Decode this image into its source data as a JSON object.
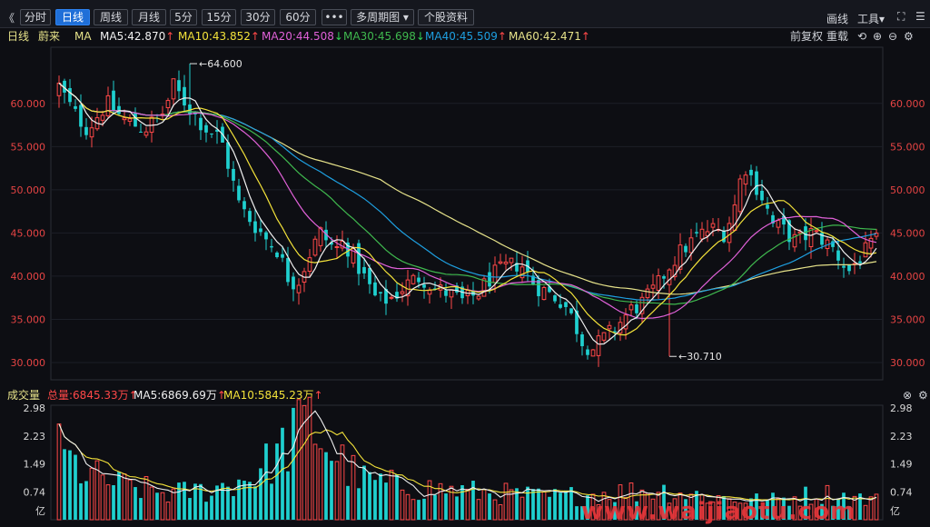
{
  "toolbar": {
    "back": "《",
    "periods": [
      "分时",
      "日线",
      "周线",
      "月线",
      "5分",
      "15分",
      "30分",
      "60分"
    ],
    "active_period": "日线",
    "more": "•••",
    "multi_period": "多周期图",
    "stock_info": "个股资料",
    "draw": "画线",
    "tools": "工具"
  },
  "ma_bar": {
    "period": "日线",
    "stock": "蔚来",
    "ma": "MA",
    "ma5": "MA5:42.870",
    "ma10": "MA10:43.852",
    "ma20": "MA20:44.508",
    "ma30": "MA30:45.698",
    "ma40": "MA40:45.509",
    "ma60": "MA60:42.471",
    "adjust": "前复权",
    "reload": "重载"
  },
  "vol_bar": {
    "label": "成交量",
    "total": "总量:6845.33万",
    "ma5": "MA5:6869.69万",
    "ma10": "MA10:5845.23万"
  },
  "watermark": "www.waijiaotu.com",
  "colors": {
    "up": "#ff4848",
    "down": "#1fd0cf",
    "ma5": "#f0f0f0",
    "ma10": "#f3e23a",
    "ma20": "#e061d8",
    "ma30": "#3fb84e",
    "ma40": "#1e9fe0",
    "ma60": "#e6e28a"
  },
  "chart_data": [
    {
      "type": "candlestick",
      "title": "蔚来 日线",
      "y_ticks": [
        "60.000",
        "55.000",
        "50.000",
        "45.000",
        "40.000",
        "35.000",
        "30.000"
      ],
      "ylim": [
        28.0,
        66.5
      ],
      "annotations": [
        {
          "text": "64.600",
          "candle": 24
        },
        {
          "text": "30.710",
          "candle": 112
        }
      ],
      "candles": [],
      "ma": {
        "ma5": [],
        "ma10": [],
        "ma20": [],
        "ma30": [],
        "ma40": [],
        "ma60": []
      }
    },
    {
      "type": "bar",
      "title": "成交量",
      "unit": "亿",
      "y_ticks": [
        "2.98",
        "2.23",
        "1.49",
        "0.74"
      ],
      "ylim": [
        0,
        3.05
      ],
      "values": [],
      "ma5": [],
      "ma10": []
    }
  ]
}
